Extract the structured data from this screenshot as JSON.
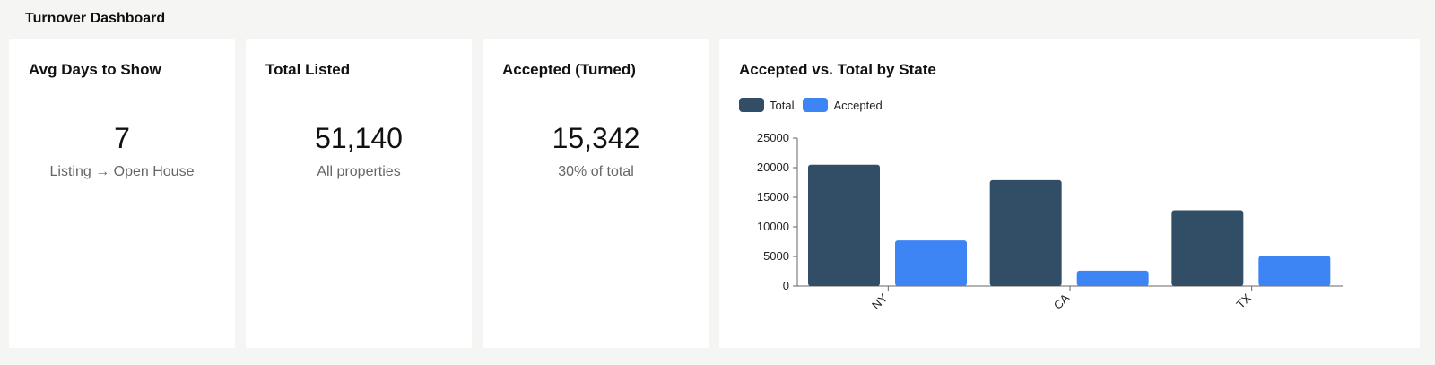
{
  "header": {
    "title": "Turnover Dashboard"
  },
  "cards": {
    "avg_days": {
      "title": "Avg Days to Show",
      "value": "7",
      "subtitle": "Listing → Open House"
    },
    "total_listed": {
      "title": "Total Listed",
      "value": "51,140",
      "subtitle": "All properties"
    },
    "accepted": {
      "title": "Accepted (Turned)",
      "value": "15,342",
      "subtitle": "30% of total"
    }
  },
  "chart_card": {
    "title": "Accepted vs. Total by State"
  },
  "chart_data": {
    "type": "bar",
    "title": "Accepted vs. Total by State",
    "categories": [
      "NY",
      "CA",
      "TX"
    ],
    "series": [
      {
        "name": "Total",
        "color": "#314e66",
        "values": [
          20500,
          17900,
          12800
        ]
      },
      {
        "name": "Accepted",
        "color": "#3d85f5",
        "values": [
          7700,
          2600,
          5100
        ]
      }
    ],
    "xlabel": "",
    "ylabel": "",
    "ylim": [
      0,
      25000
    ],
    "yticks": [
      "0",
      "5000",
      "10000",
      "15000",
      "20000",
      "25000"
    ],
    "grid": false,
    "legend_position": "top-left"
  }
}
